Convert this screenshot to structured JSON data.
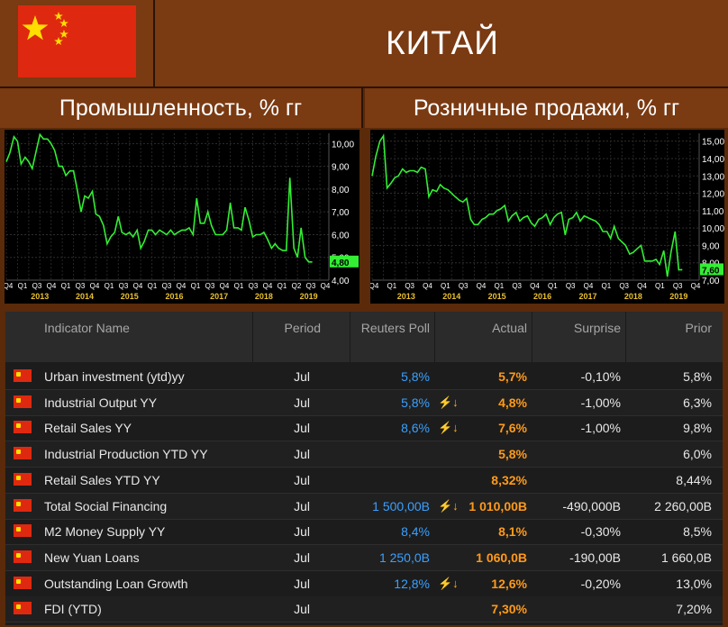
{
  "header": {
    "flag_icon": "china-flag-icon",
    "title": "КИТАЙ"
  },
  "charts": {
    "left_title": "Промышленность, % гг",
    "right_title": "Розничные продажи, % гг"
  },
  "chart_data": [
    {
      "type": "line",
      "title": "Промышленность, % гг",
      "x_tick_labels": [
        "Q4",
        "Q1",
        "Q3",
        "Q4",
        "Q1",
        "Q3",
        "Q4",
        "Q1",
        "Q3",
        "Q4",
        "Q1",
        "Q3",
        "Q4",
        "Q1",
        "Q3",
        "Q4",
        "Q1",
        "Q3",
        "Q4",
        "Q1",
        "Q2",
        "Q3",
        "Q4"
      ],
      "year_labels": [
        "2013",
        "2014",
        "2015",
        "2016",
        "2017",
        "2018",
        "2019"
      ],
      "year_positions": [
        2013.5,
        2014.5,
        2015.5,
        2016.5,
        2017.5,
        2018.5,
        2019.5
      ],
      "y_tick_labels": [
        "4,00",
        "5,00",
        "6,00",
        "7,00",
        "8,00",
        "9,00",
        "10,00"
      ],
      "ylim": [
        4.0,
        10.45
      ],
      "xlim": [
        2012.75,
        2019.95
      ],
      "last_value_label": "4,80",
      "line_color": "#33ee33",
      "grid": true,
      "series": [
        {
          "x": [
            2012.75,
            2012.83,
            2012.92,
            2013.0,
            2013.08,
            2013.17,
            2013.25,
            2013.33,
            2013.42,
            2013.5,
            2013.58,
            2013.67,
            2013.75,
            2013.83,
            2013.92,
            2014.0,
            2014.08,
            2014.17,
            2014.25,
            2014.33,
            2014.42,
            2014.5,
            2014.58,
            2014.67,
            2014.75,
            2014.83,
            2014.92,
            2015.0,
            2015.08,
            2015.17,
            2015.25,
            2015.33,
            2015.42,
            2015.5,
            2015.58,
            2015.67,
            2015.75,
            2015.83,
            2015.92,
            2016.0,
            2016.08,
            2016.17,
            2016.25,
            2016.33,
            2016.42,
            2016.5,
            2016.58,
            2016.67,
            2016.75,
            2016.83,
            2016.92,
            2017.0,
            2017.08,
            2017.17,
            2017.25,
            2017.33,
            2017.42,
            2017.5,
            2017.58,
            2017.67,
            2017.75,
            2017.83,
            2017.92,
            2018.0,
            2018.08,
            2018.17,
            2018.25,
            2018.33,
            2018.42,
            2018.5,
            2018.58,
            2018.67,
            2018.75,
            2018.83,
            2018.92,
            2019.0,
            2019.08,
            2019.17,
            2019.25,
            2019.33,
            2019.42,
            2019.5,
            2019.58
          ],
          "y": [
            9.2,
            9.6,
            10.3,
            10.1,
            9.1,
            9.4,
            9.2,
            8.9,
            9.7,
            10.4,
            10.2,
            10.2,
            10.0,
            9.7,
            9.0,
            9.0,
            8.6,
            8.8,
            8.8,
            8.0,
            7.0,
            7.7,
            7.6,
            7.9,
            6.9,
            6.8,
            6.4,
            5.6,
            5.9,
            6.1,
            6.8,
            6.1,
            6.0,
            6.1,
            5.9,
            6.2,
            5.4,
            5.7,
            6.2,
            6.2,
            6.0,
            6.2,
            6.1,
            6.0,
            6.2,
            6.0,
            6.1,
            6.2,
            6.2,
            6.3,
            6.0,
            7.6,
            6.5,
            6.5,
            7.0,
            6.4,
            6.0,
            6.0,
            6.0,
            6.2,
            7.4,
            6.3,
            6.3,
            6.2,
            7.2,
            6.6,
            5.9,
            6.0,
            6.0,
            6.1,
            5.8,
            5.4,
            5.6,
            5.4,
            5.3,
            5.3,
            8.5,
            5.4,
            5.0,
            6.3,
            5.0,
            4.8,
            4.8
          ]
        }
      ]
    },
    {
      "type": "line",
      "title": "Розничные продажи, % гг",
      "x_tick_labels": [
        "Q4",
        "Q1",
        "Q3",
        "Q4",
        "Q1",
        "Q3",
        "Q4",
        "Q1",
        "Q3",
        "Q4",
        "Q1",
        "Q3",
        "Q4",
        "Q1",
        "Q3",
        "Q4",
        "Q1",
        "Q3",
        "Q4"
      ],
      "year_labels": [
        "2013",
        "2014",
        "2015",
        "2016",
        "2017",
        "2018",
        "2019"
      ],
      "year_positions": [
        2013.5,
        2014.5,
        2015.5,
        2016.5,
        2017.5,
        2018.5,
        2019.5
      ],
      "y_tick_labels": [
        "7,00",
        "8,00",
        "9,00",
        "10,00",
        "11,00",
        "12,00",
        "13,00",
        "14,00",
        "15,00"
      ],
      "ylim": [
        7.0,
        15.45
      ],
      "xlim": [
        2012.75,
        2019.95
      ],
      "last_value_label": "7,60",
      "line_color": "#33ee33",
      "grid": true,
      "series": [
        {
          "x": [
            2012.75,
            2012.83,
            2012.92,
            2013.0,
            2013.08,
            2013.17,
            2013.25,
            2013.33,
            2013.42,
            2013.5,
            2013.58,
            2013.67,
            2013.75,
            2013.83,
            2013.92,
            2014.0,
            2014.08,
            2014.17,
            2014.25,
            2014.33,
            2014.42,
            2014.5,
            2014.58,
            2014.67,
            2014.75,
            2014.83,
            2014.92,
            2015.0,
            2015.08,
            2015.17,
            2015.25,
            2015.33,
            2015.42,
            2015.5,
            2015.58,
            2015.67,
            2015.75,
            2015.83,
            2015.92,
            2016.0,
            2016.08,
            2016.17,
            2016.25,
            2016.33,
            2016.42,
            2016.5,
            2016.58,
            2016.67,
            2016.75,
            2016.83,
            2016.92,
            2017.0,
            2017.08,
            2017.17,
            2017.25,
            2017.33,
            2017.42,
            2017.5,
            2017.58,
            2017.67,
            2017.75,
            2017.83,
            2017.92,
            2018.0,
            2018.08,
            2018.17,
            2018.25,
            2018.33,
            2018.42,
            2018.5,
            2018.58,
            2018.67,
            2018.75,
            2018.83,
            2018.92,
            2019.0,
            2019.08,
            2019.17,
            2019.25,
            2019.33,
            2019.42,
            2019.5,
            2019.58
          ],
          "y": [
            13.0,
            14.1,
            15.0,
            15.3,
            12.3,
            12.6,
            12.9,
            13.0,
            13.4,
            13.2,
            13.3,
            13.3,
            13.2,
            13.5,
            13.4,
            11.8,
            12.2,
            12.1,
            12.5,
            12.3,
            12.2,
            12.0,
            11.8,
            11.6,
            11.5,
            11.7,
            10.5,
            10.2,
            10.2,
            10.5,
            10.6,
            10.8,
            10.8,
            11.0,
            11.1,
            11.3,
            10.4,
            10.7,
            10.9,
            10.4,
            10.6,
            10.7,
            10.3,
            10.1,
            10.5,
            10.6,
            10.8,
            10.2,
            10.6,
            10.8,
            10.9,
            9.6,
            10.5,
            10.6,
            10.9,
            10.4,
            10.7,
            10.6,
            10.5,
            10.4,
            10.2,
            9.8,
            9.8,
            9.4,
            10.1,
            9.4,
            9.2,
            9.0,
            8.5,
            8.6,
            8.8,
            9.0,
            8.1,
            8.1,
            8.1,
            8.2,
            7.9,
            8.7,
            7.2,
            8.6,
            9.8,
            7.6,
            7.6
          ]
        }
      ]
    }
  ],
  "table": {
    "columns": [
      "Indicator Name",
      "Period",
      "Reuters Poll",
      "Actual",
      "Surprise",
      "Prior"
    ],
    "rows": [
      {
        "flag": "china-flag-icon",
        "name": "Urban investment (ytd)yy",
        "period": "Jul",
        "poll": "5,8%",
        "actual": "5,7%",
        "surprise": "-0,10%",
        "prior": "5,8%",
        "tag": ""
      },
      {
        "flag": "china-flag-icon",
        "name": "Industrial Output YY",
        "period": "Jul",
        "poll": "5,8%",
        "actual": "4,8%",
        "surprise": "-1,00%",
        "prior": "6,3%",
        "tag": "⚡↓"
      },
      {
        "flag": "china-flag-icon",
        "name": "Retail Sales YY",
        "period": "Jul",
        "poll": "8,6%",
        "actual": "7,6%",
        "surprise": "-1,00%",
        "prior": "9,8%",
        "tag": "⚡↓"
      },
      {
        "flag": "china-flag-icon",
        "name": "Industrial Production YTD YY",
        "period": "Jul",
        "poll": "",
        "actual": "5,8%",
        "surprise": "",
        "prior": "6,0%",
        "tag": ""
      },
      {
        "flag": "china-flag-icon",
        "name": "Retail Sales YTD YY",
        "period": "Jul",
        "poll": "",
        "actual": "8,32%",
        "surprise": "",
        "prior": "8,44%",
        "tag": ""
      },
      {
        "flag": "china-flag-icon",
        "name": "Total Social Financing",
        "period": "Jul",
        "poll": "1 500,00B",
        "actual": "1 010,00B",
        "surprise": "-490,000B",
        "prior": "2 260,00B",
        "tag": "⚡↓"
      },
      {
        "flag": "china-flag-icon",
        "name": "M2 Money Supply YY",
        "period": "Jul",
        "poll": "8,4%",
        "actual": "8,1%",
        "surprise": "-0,30%",
        "prior": "8,5%",
        "tag": ""
      },
      {
        "flag": "china-flag-icon",
        "name": "New Yuan Loans",
        "period": "Jul",
        "poll": "1 250,0B",
        "actual": "1 060,0B",
        "surprise": "-190,00B",
        "prior": "1 660,0B",
        "tag": ""
      },
      {
        "flag": "china-flag-icon",
        "name": "Outstanding Loan Growth",
        "period": "Jul",
        "poll": "12,8%",
        "actual": "12,6%",
        "surprise": "-0,20%",
        "prior": "13,0%",
        "tag": "⚡↓"
      },
      {
        "flag": "china-flag-icon",
        "name": "FDI (YTD)",
        "period": "Jul",
        "poll": "",
        "actual": "7,30%",
        "surprise": "",
        "prior": "7,20%",
        "tag": ""
      }
    ]
  },
  "colors": {
    "frame": "#7a3a12",
    "line": "#33ee33",
    "poll": "#3aa0ff",
    "actual": "#ff9a1a",
    "flag_red": "#de2910",
    "flag_yellow": "#ffde00"
  }
}
